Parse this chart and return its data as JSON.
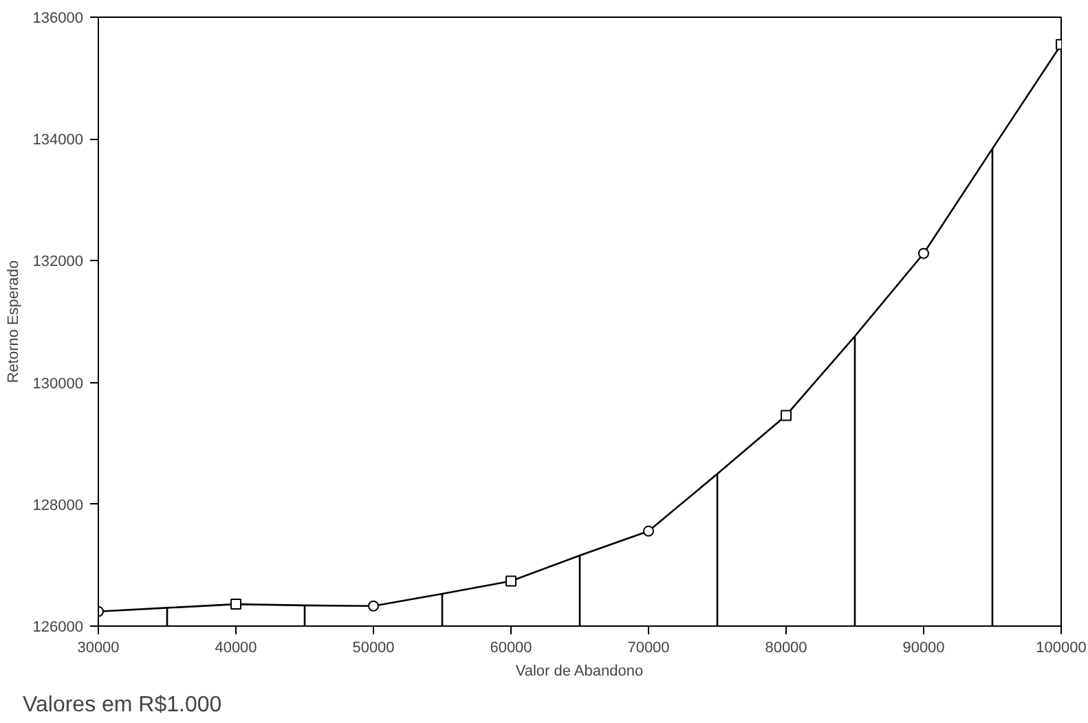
{
  "chart_data": {
    "type": "line",
    "xlabel": "Valor de Abandono",
    "ylabel": "Retorno Esperado",
    "annotations": [
      "Valores em R$1.000"
    ],
    "x": [
      30000,
      35000,
      40000,
      45000,
      50000,
      55000,
      60000,
      65000,
      70000,
      75000,
      80000,
      85000,
      90000,
      95000,
      100000
    ],
    "series": [
      {
        "color": "#000000",
        "marker": "none",
        "values": [
          126240,
          126300,
          126360,
          126340,
          126330,
          126530,
          126740,
          127160,
          127560,
          128500,
          129460,
          130760,
          132120,
          133840,
          135550
        ]
      },
      {
        "type": "bar",
        "color": "#000000",
        "x": [
          35000,
          45000,
          55000,
          65000,
          75000,
          85000,
          95000
        ],
        "values": [
          126300,
          126340,
          126530,
          127160,
          128500,
          130760,
          133840
        ]
      },
      {
        "type": "scatter",
        "color": "#000000",
        "marker": "circle",
        "x": [
          30000,
          50000,
          70000,
          90000
        ],
        "values": [
          126240,
          126330,
          127560,
          132120
        ]
      },
      {
        "type": "scatter",
        "color": "#000000",
        "marker": "square",
        "x": [
          40000,
          60000,
          80000,
          100000
        ],
        "values": [
          126360,
          126740,
          129460,
          135550
        ]
      }
    ],
    "xlim": [
      30000,
      100000
    ],
    "ylim": [
      126000,
      136000
    ],
    "xticks": [
      30000,
      40000,
      50000,
      60000,
      70000,
      80000,
      90000,
      100000
    ],
    "yticks": [
      126000,
      128000,
      130000,
      132000,
      134000,
      136000
    ],
    "grid": false
  }
}
